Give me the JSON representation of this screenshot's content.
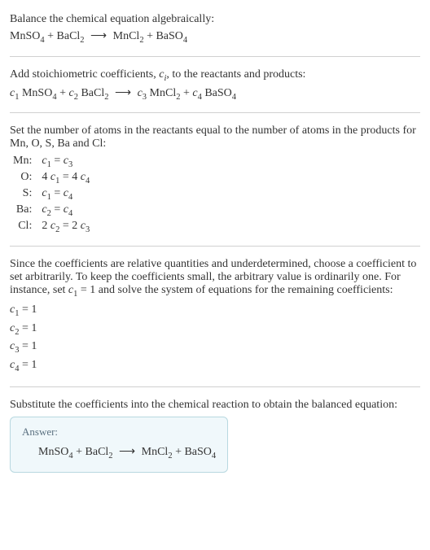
{
  "section1": {
    "intro": "Balance the chemical equation algebraically:",
    "eq": {
      "r1": "MnSO",
      "r1sub": "4",
      "r2": "BaCl",
      "r2sub": "2",
      "arrow": "⟶",
      "p1": "MnCl",
      "p1sub": "2",
      "p2": "BaSO",
      "p2sub": "4"
    }
  },
  "section2": {
    "intro_a": "Add stoichiometric coefficients, ",
    "intro_ci": "c",
    "intro_ci_sub": "i",
    "intro_b": ", to the reactants and products:",
    "eq": {
      "c1": "c",
      "c1sub": "1",
      "r1": " MnSO",
      "r1sub": "4",
      "c2": "c",
      "c2sub": "2",
      "r2": " BaCl",
      "r2sub": "2",
      "arrow": "⟶",
      "c3": "c",
      "c3sub": "3",
      "p1": " MnCl",
      "p1sub": "2",
      "c4": "c",
      "c4sub": "4",
      "p2": " BaSO",
      "p2sub": "4"
    }
  },
  "section3": {
    "intro": "Set the number of atoms in the reactants equal to the number of atoms in the products for Mn, O, S, Ba and Cl:",
    "rows": {
      "mn_label": "Mn:",
      "o_label": "O:",
      "s_label": "S:",
      "ba_label": "Ba:",
      "cl_label": "Cl:"
    },
    "eqs": {
      "mn": {
        "l_c": "c",
        "l_sub": "1",
        "eq": " = ",
        "r_c": "c",
        "r_sub": "3"
      },
      "o": {
        "l_n": "4 ",
        "l_c": "c",
        "l_sub": "1",
        "eq": " = ",
        "r_n": "4 ",
        "r_c": "c",
        "r_sub": "4"
      },
      "s": {
        "l_c": "c",
        "l_sub": "1",
        "eq": " = ",
        "r_c": "c",
        "r_sub": "4"
      },
      "ba": {
        "l_c": "c",
        "l_sub": "2",
        "eq": " = ",
        "r_c": "c",
        "r_sub": "4"
      },
      "cl": {
        "l_n": "2 ",
        "l_c": "c",
        "l_sub": "2",
        "eq": " = ",
        "r_n": "2 ",
        "r_c": "c",
        "r_sub": "3"
      }
    }
  },
  "section4": {
    "intro_a": "Since the coefficients are relative quantities and underdetermined, choose a coefficient to set arbitrarily. To keep the coefficients small, the arbitrary value is ordinarily one. For instance, set ",
    "c1": "c",
    "c1sub": "1",
    "eq1": " = 1",
    "intro_b": " and solve the system of equations for the remaining coefficients:",
    "coeffs": {
      "l1": {
        "c": "c",
        "sub": "1",
        "val": " = 1"
      },
      "l2": {
        "c": "c",
        "sub": "2",
        "val": " = 1"
      },
      "l3": {
        "c": "c",
        "sub": "3",
        "val": " = 1"
      },
      "l4": {
        "c": "c",
        "sub": "4",
        "val": " = 1"
      }
    }
  },
  "section5": {
    "intro": "Substitute the coefficients into the chemical reaction to obtain the balanced equation:",
    "answer_label": "Answer:",
    "eq": {
      "r1": "MnSO",
      "r1sub": "4",
      "r2": "BaCl",
      "r2sub": "2",
      "arrow": "⟶",
      "p1": "MnCl",
      "p1sub": "2",
      "p2": "BaSO",
      "p2sub": "4"
    }
  }
}
